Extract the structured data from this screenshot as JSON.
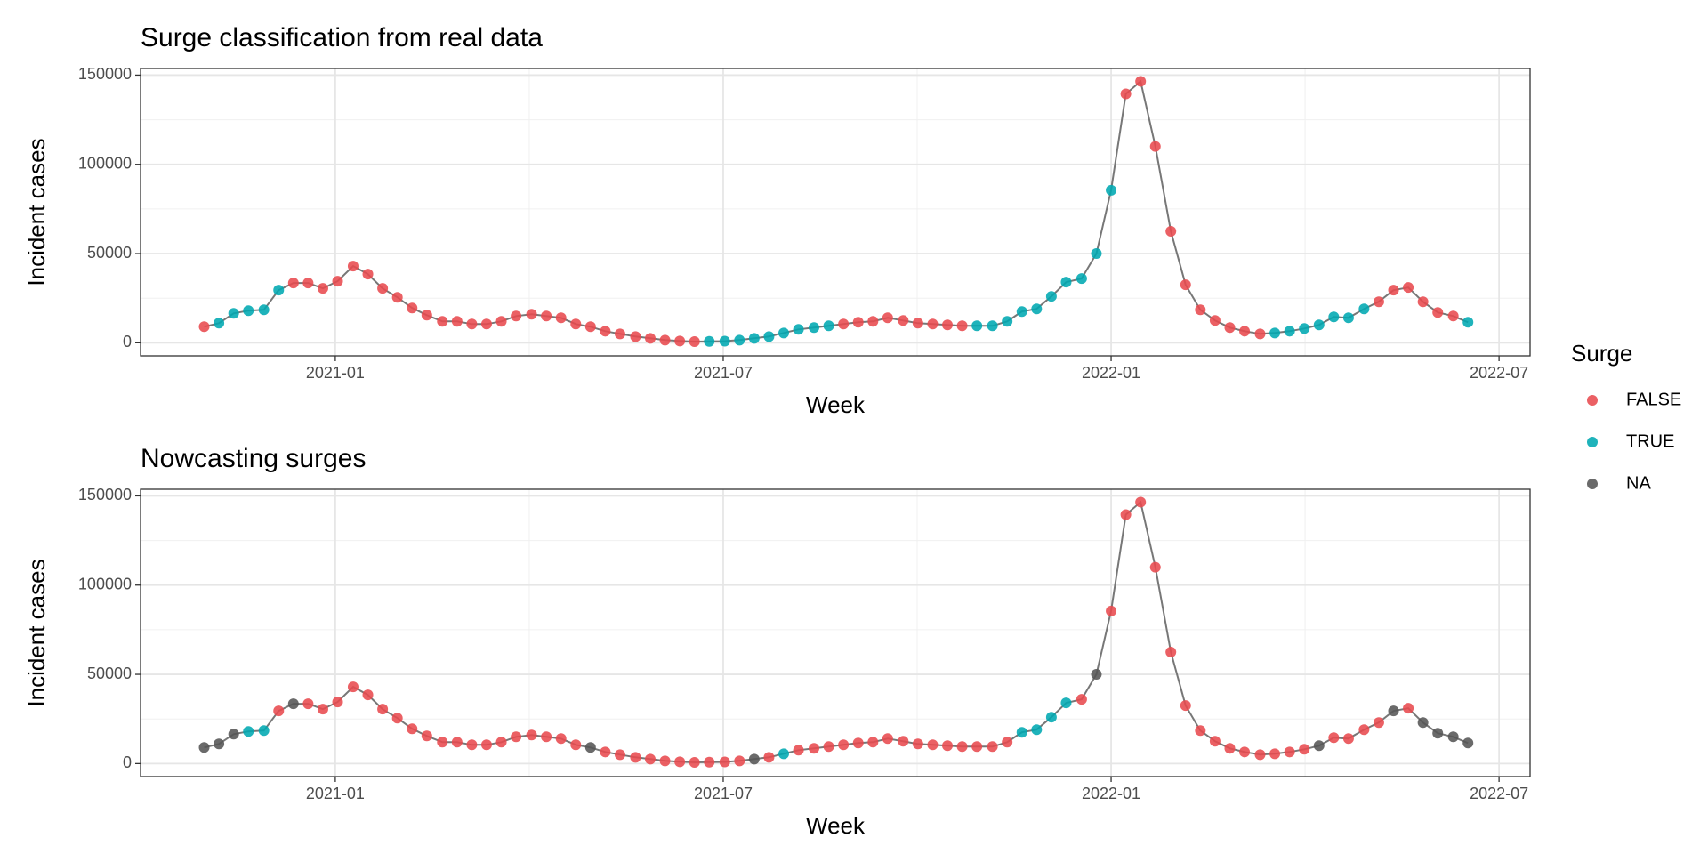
{
  "chart_data": [
    {
      "type": "line",
      "title": "Surge classification from real data",
      "xlabel": "Week",
      "ylabel": "Incident cases",
      "x": [
        2020.831,
        2020.85,
        2020.869,
        2020.888,
        2020.908,
        2020.927,
        2020.946,
        2020.965,
        2020.984,
        2021.003,
        2021.023,
        2021.042,
        2021.061,
        2021.08,
        2021.099,
        2021.118,
        2021.138,
        2021.157,
        2021.176,
        2021.195,
        2021.214,
        2021.233,
        2021.253,
        2021.272,
        2021.291,
        2021.31,
        2021.329,
        2021.348,
        2021.367,
        2021.387,
        2021.406,
        2021.425,
        2021.444,
        2021.463,
        2021.482,
        2021.502,
        2021.521,
        2021.54,
        2021.559,
        2021.578,
        2021.597,
        2021.617,
        2021.636,
        2021.655,
        2021.674,
        2021.693,
        2021.712,
        2021.732,
        2021.751,
        2021.77,
        2021.789,
        2021.808,
        2021.827,
        2021.847,
        2021.866,
        2021.885,
        2021.904,
        2021.923,
        2021.942,
        2021.962,
        2021.981,
        2022.0,
        2022.019,
        2022.038,
        2022.057,
        2022.077,
        2022.096,
        2022.115,
        2022.134,
        2022.153,
        2022.172,
        2022.192,
        2022.211,
        2022.23,
        2022.249,
        2022.268,
        2022.287,
        2022.306,
        2022.326,
        2022.345,
        2022.364,
        2022.383,
        2022.402,
        2022.421,
        2022.441,
        2022.46
      ],
      "values": [
        9000,
        11000,
        16500,
        18000,
        18500,
        29500,
        33500,
        33500,
        30500,
        34500,
        43000,
        38500,
        30500,
        25500,
        19500,
        15500,
        12000,
        12000,
        10500,
        10500,
        12000,
        15000,
        16000,
        15000,
        14000,
        10500,
        9000,
        6500,
        5000,
        3500,
        2500,
        1500,
        1000,
        700,
        800,
        900,
        1500,
        2500,
        3500,
        5500,
        7500,
        8500,
        9500,
        10500,
        11500,
        12000,
        14000,
        12500,
        11000,
        10500,
        10000,
        9500,
        9500,
        9500,
        12000,
        17500,
        19000,
        26000,
        34000,
        36000,
        50000,
        85500,
        139500,
        146500,
        110000,
        62500,
        32500,
        18500,
        12500,
        8500,
        6500,
        5000,
        5500,
        6500,
        8000,
        10000,
        14500,
        14000,
        19000,
        23000,
        29500,
        31000,
        23000,
        17000,
        15000,
        11500
      ],
      "surge": [
        "FALSE",
        "TRUE",
        "TRUE",
        "TRUE",
        "TRUE",
        "TRUE",
        "FALSE",
        "FALSE",
        "FALSE",
        "FALSE",
        "FALSE",
        "FALSE",
        "FALSE",
        "FALSE",
        "FALSE",
        "FALSE",
        "FALSE",
        "FALSE",
        "FALSE",
        "FALSE",
        "FALSE",
        "FALSE",
        "FALSE",
        "FALSE",
        "FALSE",
        "FALSE",
        "FALSE",
        "FALSE",
        "FALSE",
        "FALSE",
        "FALSE",
        "FALSE",
        "FALSE",
        "FALSE",
        "TRUE",
        "TRUE",
        "TRUE",
        "TRUE",
        "TRUE",
        "TRUE",
        "TRUE",
        "TRUE",
        "TRUE",
        "FALSE",
        "FALSE",
        "FALSE",
        "FALSE",
        "FALSE",
        "FALSE",
        "FALSE",
        "FALSE",
        "FALSE",
        "TRUE",
        "TRUE",
        "TRUE",
        "TRUE",
        "TRUE",
        "TRUE",
        "TRUE",
        "TRUE",
        "TRUE",
        "TRUE",
        "FALSE",
        "FALSE",
        "FALSE",
        "FALSE",
        "FALSE",
        "FALSE",
        "FALSE",
        "FALSE",
        "FALSE",
        "FALSE",
        "TRUE",
        "TRUE",
        "TRUE",
        "TRUE",
        "TRUE",
        "TRUE",
        "TRUE",
        "FALSE",
        "FALSE",
        "FALSE",
        "FALSE",
        "FALSE",
        "FALSE",
        "TRUE"
      ],
      "line_color": "#777777",
      "xlim": [
        2020.749,
        2022.54
      ],
      "xticks": [
        {
          "value": 2021.0,
          "label": "2021-01"
        },
        {
          "value": 2021.5,
          "label": "2021-07"
        },
        {
          "value": 2022.0,
          "label": "2022-01"
        },
        {
          "value": 2022.5,
          "label": "2022-07"
        }
      ],
      "ylim": [
        -7300,
        153700
      ],
      "yticks": [
        0,
        50000,
        100000,
        150000
      ],
      "grid": true,
      "legend": {
        "title": "Surge",
        "entries": [
          "FALSE",
          "TRUE",
          "NA"
        ],
        "colors": [
          "#E84A4E",
          "#00A9B2",
          "#555555"
        ]
      }
    },
    {
      "type": "line",
      "title": "Nowcasting surges",
      "xlabel": "Week",
      "ylabel": "Incident cases",
      "x": [
        2020.831,
        2020.85,
        2020.869,
        2020.888,
        2020.908,
        2020.927,
        2020.946,
        2020.965,
        2020.984,
        2021.003,
        2021.023,
        2021.042,
        2021.061,
        2021.08,
        2021.099,
        2021.118,
        2021.138,
        2021.157,
        2021.176,
        2021.195,
        2021.214,
        2021.233,
        2021.253,
        2021.272,
        2021.291,
        2021.31,
        2021.329,
        2021.348,
        2021.367,
        2021.387,
        2021.406,
        2021.425,
        2021.444,
        2021.463,
        2021.482,
        2021.502,
        2021.521,
        2021.54,
        2021.559,
        2021.578,
        2021.597,
        2021.617,
        2021.636,
        2021.655,
        2021.674,
        2021.693,
        2021.712,
        2021.732,
        2021.751,
        2021.77,
        2021.789,
        2021.808,
        2021.827,
        2021.847,
        2021.866,
        2021.885,
        2021.904,
        2021.923,
        2021.942,
        2021.962,
        2021.981,
        2022.0,
        2022.019,
        2022.038,
        2022.057,
        2022.077,
        2022.096,
        2022.115,
        2022.134,
        2022.153,
        2022.172,
        2022.192,
        2022.211,
        2022.23,
        2022.249,
        2022.268,
        2022.287,
        2022.306,
        2022.326,
        2022.345,
        2022.364,
        2022.383,
        2022.402,
        2022.421,
        2022.441,
        2022.46
      ],
      "values": [
        9000,
        11000,
        16500,
        18000,
        18500,
        29500,
        33500,
        33500,
        30500,
        34500,
        43000,
        38500,
        30500,
        25500,
        19500,
        15500,
        12000,
        12000,
        10500,
        10500,
        12000,
        15000,
        16000,
        15000,
        14000,
        10500,
        9000,
        6500,
        5000,
        3500,
        2500,
        1500,
        1000,
        700,
        800,
        900,
        1500,
        2500,
        3500,
        5500,
        7500,
        8500,
        9500,
        10500,
        11500,
        12000,
        14000,
        12500,
        11000,
        10500,
        10000,
        9500,
        9500,
        9500,
        12000,
        17500,
        19000,
        26000,
        34000,
        36000,
        50000,
        85500,
        139500,
        146500,
        110000,
        62500,
        32500,
        18500,
        12500,
        8500,
        6500,
        5000,
        5500,
        6500,
        8000,
        10000,
        14500,
        14000,
        19000,
        23000,
        29500,
        31000,
        23000,
        17000,
        15000,
        11500
      ],
      "surge": [
        "NA",
        "NA",
        "NA",
        "TRUE",
        "TRUE",
        "FALSE",
        "NA",
        "FALSE",
        "FALSE",
        "FALSE",
        "FALSE",
        "FALSE",
        "FALSE",
        "FALSE",
        "FALSE",
        "FALSE",
        "FALSE",
        "FALSE",
        "FALSE",
        "FALSE",
        "FALSE",
        "FALSE",
        "FALSE",
        "FALSE",
        "FALSE",
        "FALSE",
        "NA",
        "FALSE",
        "FALSE",
        "FALSE",
        "FALSE",
        "FALSE",
        "FALSE",
        "FALSE",
        "FALSE",
        "FALSE",
        "FALSE",
        "NA",
        "FALSE",
        "TRUE",
        "FALSE",
        "FALSE",
        "FALSE",
        "FALSE",
        "FALSE",
        "FALSE",
        "FALSE",
        "FALSE",
        "FALSE",
        "FALSE",
        "FALSE",
        "FALSE",
        "FALSE",
        "FALSE",
        "FALSE",
        "TRUE",
        "TRUE",
        "TRUE",
        "TRUE",
        "FALSE",
        "NA",
        "FALSE",
        "FALSE",
        "FALSE",
        "FALSE",
        "FALSE",
        "FALSE",
        "FALSE",
        "FALSE",
        "FALSE",
        "FALSE",
        "FALSE",
        "FALSE",
        "FALSE",
        "FALSE",
        "NA",
        "FALSE",
        "FALSE",
        "FALSE",
        "FALSE",
        "NA",
        "FALSE",
        "NA",
        "NA",
        "NA",
        "NA"
      ],
      "line_color": "#777777",
      "xlim": [
        2020.749,
        2022.54
      ],
      "xticks": [
        {
          "value": 2021.0,
          "label": "2021-01"
        },
        {
          "value": 2021.5,
          "label": "2021-07"
        },
        {
          "value": 2022.0,
          "label": "2022-01"
        },
        {
          "value": 2022.5,
          "label": "2022-07"
        }
      ],
      "ylim": [
        -7300,
        153700
      ],
      "yticks": [
        0,
        50000,
        100000,
        150000
      ],
      "grid": true
    }
  ]
}
